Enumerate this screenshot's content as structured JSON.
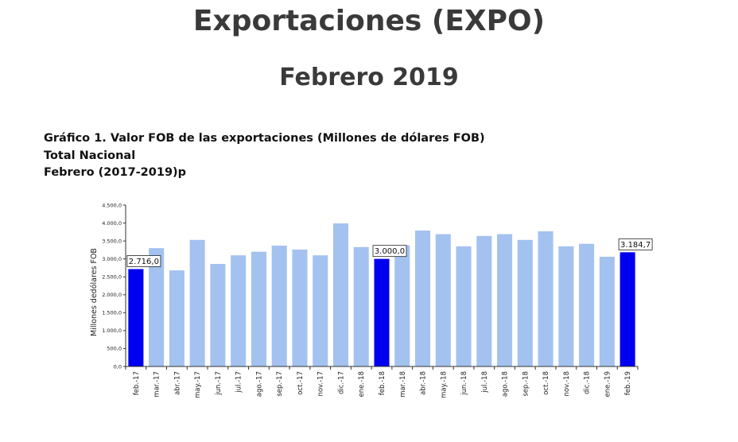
{
  "page": {
    "title": "Exportaciones (EXPO)",
    "subtitle": "Febrero 2019"
  },
  "chart_header": {
    "line1": "Gráfico 1. Valor FOB de las exportaciones (Millones de dólares FOB)",
    "line2": "Total Nacional",
    "line3": "Febrero (2017-2019)p"
  },
  "colors": {
    "bar_default": "#a3c2f0",
    "bar_highlight": "#0000f0",
    "axis": "#333333"
  },
  "chart_data": {
    "type": "bar",
    "title": "Gráfico 1. Valor FOB de las exportaciones (Millones de dólares FOB)",
    "ylabel": "Millones dedólares FOB",
    "xlabel": "",
    "ylim": [
      0,
      4500
    ],
    "yticks": [
      0,
      500,
      1000,
      1500,
      2000,
      2500,
      3000,
      3500,
      4000,
      4500
    ],
    "ytick_labels": [
      "0,0",
      "500,0",
      "1.000,0",
      "1.500,0",
      "2.000,0",
      "2.500,0",
      "3.000,0",
      "3.500,0",
      "4.000,0",
      "4.500,0"
    ],
    "categories": [
      "feb.-17",
      "mar.-17",
      "abr.-17",
      "may.-17",
      "jun.-17",
      "jul.-17",
      "ago.-17",
      "sep.-17",
      "oct.-17",
      "nov.-17",
      "dic.-17",
      "ene.-18",
      "feb.-18",
      "mar.-18",
      "abr.-18",
      "may.-18",
      "jun.-18",
      "jul.-18",
      "ago.-18",
      "sep.-18",
      "oct.-18",
      "nov.-18",
      "dic.-18",
      "ene.-19",
      "feb.-19"
    ],
    "values": [
      2716.0,
      3300,
      2680,
      3530,
      2860,
      3100,
      3200,
      3370,
      3260,
      3100,
      3990,
      3330,
      3000.0,
      3380,
      3790,
      3690,
      3350,
      3640,
      3690,
      3530,
      3770,
      3350,
      3420,
      3060,
      3184.7
    ],
    "highlighted": [
      0,
      12,
      24
    ],
    "data_labels": [
      {
        "index": 0,
        "text": "2.716,0"
      },
      {
        "index": 12,
        "text": "3.000,0"
      },
      {
        "index": 24,
        "text": "3.184,7"
      }
    ],
    "grid": false,
    "legend": "none"
  }
}
